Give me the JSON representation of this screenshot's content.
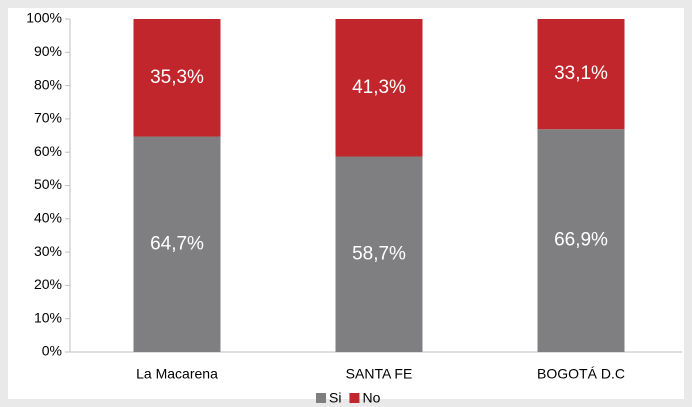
{
  "chart_data": {
    "type": "stacked_bar",
    "categories": [
      "La Macarena",
      "SANTA FE",
      "BOGOTÁ D.C"
    ],
    "series": [
      {
        "name": "Si",
        "color": "#7f7f81",
        "values": [
          64.7,
          58.7,
          66.9
        ],
        "value_labels": [
          "64,7%",
          "58,7%",
          "66,9%"
        ]
      },
      {
        "name": "No",
        "color": "#c1262c",
        "values": [
          35.3,
          41.3,
          33.1
        ],
        "value_labels": [
          "35,3%",
          "41,3%",
          "33,1%"
        ]
      }
    ],
    "ylim": [
      0,
      100
    ],
    "yticks": [
      {
        "value": 0,
        "label": "0%"
      },
      {
        "value": 10,
        "label": "10%"
      },
      {
        "value": 20,
        "label": "20%"
      },
      {
        "value": 30,
        "label": "30%"
      },
      {
        "value": 40,
        "label": "40%"
      },
      {
        "value": 50,
        "label": "50%"
      },
      {
        "value": 60,
        "label": "60%"
      },
      {
        "value": 70,
        "label": "70%"
      },
      {
        "value": 80,
        "label": "80%"
      },
      {
        "value": 90,
        "label": "90%"
      },
      {
        "value": 100,
        "label": "100%"
      }
    ],
    "legend": "bottom"
  }
}
